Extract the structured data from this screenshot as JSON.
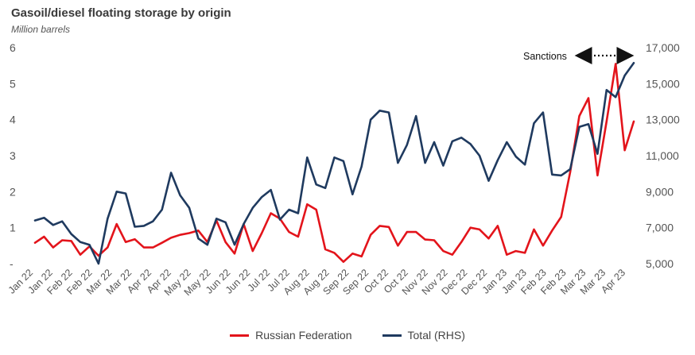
{
  "chart_data": {
    "type": "line",
    "title": "Gasoil/diesel floating storage by origin",
    "subtitle": "Million barrels",
    "annotation": "Sanctions",
    "x_tick_labels": [
      "Jan 22",
      "Jan 22",
      "Feb 22",
      "Feb 22",
      "Mar 22",
      "Mar 22",
      "Apr 22",
      "Apr 22",
      "May 22",
      "May 22",
      "Jun 22",
      "Jun 22",
      "Jul 22",
      "Jul 22",
      "Aug 22",
      "Aug 22",
      "Sep 22",
      "Sep 22",
      "Oct 22",
      "Oct 22",
      "Nov 22",
      "Nov 22",
      "Dec 22",
      "Dec 22",
      "Jan 23",
      "Jan 23",
      "Feb 23",
      "Feb 23",
      "Mar 23",
      "Mar 23",
      "Apr 23"
    ],
    "y_left": {
      "ticks": [
        "-",
        "1",
        "2",
        "3",
        "4",
        "5",
        "6"
      ],
      "range": [
        0,
        6
      ]
    },
    "y_right": {
      "ticks": [
        "5,000",
        "7,000",
        "9,000",
        "11,000",
        "13,000",
        "15,000",
        "17,000"
      ],
      "range": [
        5000,
        17000
      ]
    },
    "series": [
      {
        "name": "Russian Federation",
        "axis": "left",
        "color": "#e3141b",
        "values": [
          0.58,
          0.75,
          0.45,
          0.65,
          0.63,
          0.25,
          0.48,
          0.22,
          0.45,
          1.1,
          0.6,
          0.68,
          0.45,
          0.45,
          0.58,
          0.72,
          0.8,
          0.85,
          0.92,
          0.6,
          1.2,
          0.6,
          0.28,
          1.1,
          0.35,
          0.85,
          1.4,
          1.25,
          0.88,
          0.75,
          1.65,
          1.5,
          0.4,
          0.3,
          0.05,
          0.28,
          0.2,
          0.8,
          1.05,
          1.02,
          0.5,
          0.88,
          0.88,
          0.67,
          0.65,
          0.35,
          0.25,
          0.6,
          1.0,
          0.95,
          0.7,
          1.05,
          0.25,
          0.35,
          0.3,
          0.95,
          0.5,
          0.92,
          1.3,
          2.55,
          4.1,
          4.6,
          2.45,
          3.95,
          5.55,
          3.15,
          3.95
        ]
      },
      {
        "name": "Total (RHS)",
        "axis": "right",
        "color": "#1f3a5f",
        "values": [
          7400,
          7550,
          7150,
          7350,
          6650,
          6200,
          6050,
          5000,
          7500,
          9000,
          8900,
          7050,
          7100,
          7350,
          8000,
          10050,
          8800,
          8100,
          6400,
          6050,
          7500,
          7300,
          6050,
          7200,
          8100,
          8700,
          9100,
          7450,
          8000,
          7800,
          10900,
          9400,
          9200,
          10900,
          10700,
          8850,
          10400,
          13000,
          13500,
          13400,
          10600,
          11600,
          13200,
          10600,
          11750,
          10450,
          11800,
          12000,
          11650,
          11000,
          9600,
          10750,
          11750,
          10950,
          10500,
          12800,
          13400,
          9950,
          9900,
          10250,
          12600,
          12750,
          11100,
          14650,
          14250,
          15450,
          16150
        ]
      }
    ]
  }
}
